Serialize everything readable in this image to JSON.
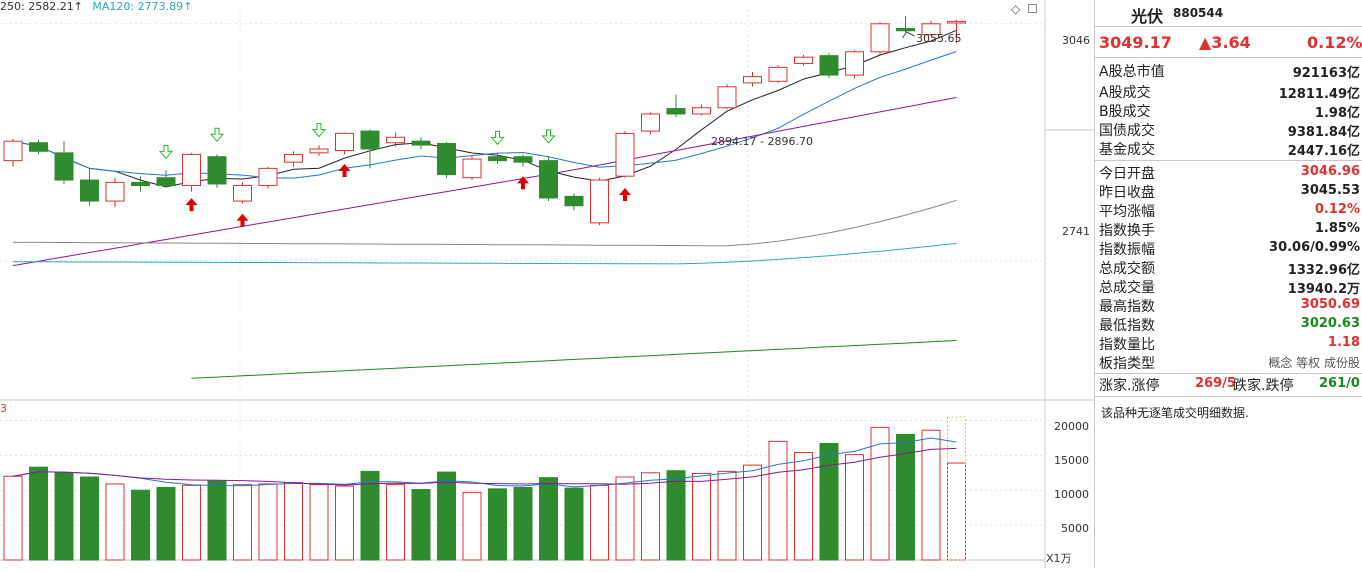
{
  "legend": {
    "ma250": "250: 2582.21↑",
    "ma120": "MA120: 2773.89↑",
    "ma120_color": "#2aa8b8"
  },
  "price_axis": {
    "top_label": "3046",
    "mid_label": "2741"
  },
  "annotations": {
    "high_label": "3055.65",
    "range_label": "2894.17 - 2896.70"
  },
  "volume_axis": {
    "labels": [
      "20000",
      "15000",
      "10000",
      "5000"
    ],
    "unit": "X1万"
  },
  "volume_tag": "3",
  "panel": {
    "name": "光伏",
    "code": "880544",
    "price": "3049.17",
    "change": "▲3.64",
    "change_pct": "0.12%",
    "stats": [
      {
        "k": "A股总市值",
        "v": "921163亿",
        "color": "#222"
      },
      {
        "k": "A股成交",
        "v": "12811.49亿",
        "color": "#222"
      },
      {
        "k": "B股成交",
        "v": "1.98亿",
        "color": "#222"
      },
      {
        "k": "国债成交",
        "v": "9381.84亿",
        "color": "#222"
      },
      {
        "k": "基金成交",
        "v": "2447.16亿",
        "color": "#222"
      },
      {
        "k": "今日开盘",
        "v": "3046.96",
        "color": "#e03030"
      },
      {
        "k": "昨日收盘",
        "v": "3045.53",
        "color": "#222"
      },
      {
        "k": "平均涨幅",
        "v": "0.12%",
        "color": "#e03030"
      },
      {
        "k": "指数换手",
        "v": "1.85%",
        "color": "#222"
      },
      {
        "k": "指数振幅",
        "v": "30.06/0.99%",
        "color": "#222"
      },
      {
        "k": "总成交额",
        "v": "1332.96亿",
        "color": "#222"
      },
      {
        "k": "总成交量",
        "v": "13940.2万",
        "color": "#222"
      },
      {
        "k": "最高指数",
        "v": "3050.69",
        "color": "#e03030"
      },
      {
        "k": "最低指数",
        "v": "3020.63",
        "color": "#1a8a1a"
      },
      {
        "k": "指数量比",
        "v": "1.18",
        "color": "#e03030"
      },
      {
        "k": "板指类型",
        "v": "概念 等权 成份股",
        "color": "#555"
      }
    ],
    "updown_label1": "涨家.涨停",
    "updown_val1": "269/5",
    "updown_label2": "跌家.跌停",
    "updown_val2": "261/0",
    "no_detail": "该品种无逐笔成交明细数据."
  },
  "colors": {
    "up": "#e03030",
    "down": "#2e8b2e",
    "ma5": "#222222",
    "ma10": "#2277cc",
    "ma20": "#8b1a8b",
    "ma60": "#888888",
    "ma120": "#2aa8b8",
    "ma250": "#1a8a1a"
  },
  "chart_data": {
    "type": "candlestick",
    "candles": [
      {
        "o": 2870,
        "c": 2895,
        "h": 2898,
        "l": 2862,
        "v": 12000
      },
      {
        "o": 2893,
        "c": 2882,
        "h": 2897,
        "l": 2878,
        "v": 13300
      },
      {
        "o": 2880,
        "c": 2845,
        "h": 2895,
        "l": 2840,
        "v": 12500
      },
      {
        "o": 2845,
        "c": 2818,
        "h": 2860,
        "l": 2812,
        "v": 11900
      },
      {
        "o": 2818,
        "c": 2842,
        "h": 2848,
        "l": 2810,
        "v": 10900
      },
      {
        "o": 2842,
        "c": 2838,
        "h": 2850,
        "l": 2830,
        "v": 10000
      },
      {
        "o": 2848,
        "c": 2838,
        "h": 2858,
        "l": 2835,
        "v": 10400
      },
      {
        "o": 2838,
        "c": 2878,
        "h": 2880,
        "l": 2830,
        "v": 10700
      },
      {
        "o": 2875,
        "c": 2840,
        "h": 2878,
        "l": 2835,
        "v": 11300
      },
      {
        "o": 2818,
        "c": 2838,
        "h": 2842,
        "l": 2815,
        "v": 10800
      },
      {
        "o": 2838,
        "c": 2860,
        "h": 2862,
        "l": 2834,
        "v": 10900
      },
      {
        "o": 2868,
        "c": 2878,
        "h": 2882,
        "l": 2862,
        "v": 11100
      },
      {
        "o": 2880,
        "c": 2885,
        "h": 2890,
        "l": 2876,
        "v": 10800
      },
      {
        "o": 2883,
        "c": 2905,
        "h": 2906,
        "l": 2878,
        "v": 10600
      },
      {
        "o": 2908,
        "c": 2885,
        "h": 2910,
        "l": 2860,
        "v": 12700
      },
      {
        "o": 2893,
        "c": 2900,
        "h": 2906,
        "l": 2888,
        "v": 10800
      },
      {
        "o": 2895,
        "c": 2890,
        "h": 2900,
        "l": 2885,
        "v": 10100
      },
      {
        "o": 2892,
        "c": 2852,
        "h": 2894,
        "l": 2848,
        "v": 12600
      },
      {
        "o": 2848,
        "c": 2872,
        "h": 2876,
        "l": 2845,
        "v": 9700
      },
      {
        "o": 2875,
        "c": 2870,
        "h": 2880,
        "l": 2866,
        "v": 10200
      },
      {
        "o": 2875,
        "c": 2868,
        "h": 2878,
        "l": 2862,
        "v": 10400
      },
      {
        "o": 2870,
        "c": 2822,
        "h": 2875,
        "l": 2818,
        "v": 11800
      },
      {
        "o": 2824,
        "c": 2812,
        "h": 2828,
        "l": 2806,
        "v": 10300
      },
      {
        "o": 2790,
        "c": 2845,
        "h": 2848,
        "l": 2787,
        "v": 10700
      },
      {
        "o": 2850,
        "c": 2905,
        "h": 2908,
        "l": 2848,
        "v": 11900
      },
      {
        "o": 2908,
        "c": 2930,
        "h": 2932,
        "l": 2904,
        "v": 12500
      },
      {
        "o": 2937,
        "c": 2930,
        "h": 2955,
        "l": 2926,
        "v": 12800
      },
      {
        "o": 2930,
        "c": 2938,
        "h": 2942,
        "l": 2928,
        "v": 12400
      },
      {
        "o": 2938,
        "c": 2965,
        "h": 2968,
        "l": 2936,
        "v": 12700
      },
      {
        "o": 2970,
        "c": 2978,
        "h": 2984,
        "l": 2965,
        "v": 13600
      },
      {
        "o": 2972,
        "c": 2990,
        "h": 2993,
        "l": 2970,
        "v": 17000
      },
      {
        "o": 2995,
        "c": 3003,
        "h": 3006,
        "l": 2992,
        "v": 15400
      },
      {
        "o": 3005,
        "c": 2980,
        "h": 3008,
        "l": 2976,
        "v": 16700
      },
      {
        "o": 2980,
        "c": 3010,
        "h": 3012,
        "l": 2976,
        "v": 15100
      },
      {
        "o": 3010,
        "c": 3046,
        "h": 3048,
        "l": 3006,
        "v": 19000
      },
      {
        "o": 3040,
        "c": 3037,
        "h": 3056,
        "l": 3035,
        "v": 18000
      },
      {
        "o": 3032,
        "c": 3046,
        "h": 3050,
        "l": 3030,
        "v": 18600
      },
      {
        "o": 3047,
        "c": 3049,
        "h": 3051,
        "l": 3021,
        "v": 13900
      }
    ],
    "y_ticks": [
      3046,
      2741
    ],
    "volume_ticks": [
      20000,
      15000,
      10000,
      5000
    ],
    "price_range": [
      2575,
      3065
    ],
    "volume_range": [
      0,
      21500
    ]
  }
}
